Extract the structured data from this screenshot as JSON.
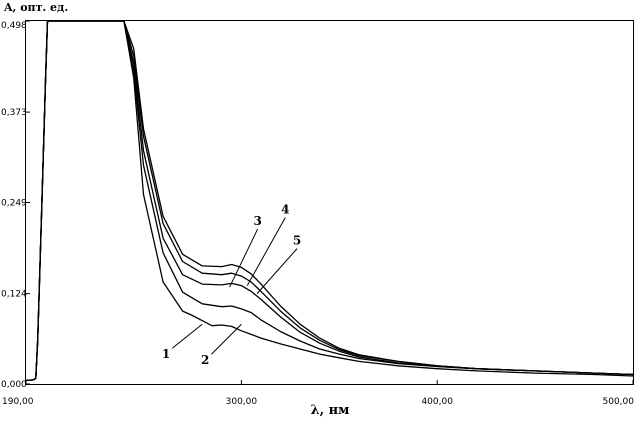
{
  "chart_data": {
    "type": "line",
    "ylabel": "A, опт. ед.",
    "xlabel": "λ,  нм",
    "xlim": [
      190,
      500
    ],
    "ylim": [
      0,
      0.498
    ],
    "grid": false,
    "x_ticks": [
      {
        "value": 190,
        "label": "190,00"
      },
      {
        "value": 300,
        "label": "300,00"
      },
      {
        "value": 400,
        "label": "400,00"
      },
      {
        "value": 500,
        "label": "500,00"
      }
    ],
    "y_ticks": [
      {
        "value": 0.0,
        "label": "0,000"
      },
      {
        "value": 0.124,
        "label": "0,124"
      },
      {
        "value": 0.249,
        "label": "0,249"
      },
      {
        "value": 0.373,
        "label": "0,373"
      },
      {
        "value": 0.498,
        "label": "0,498"
      }
    ],
    "series": [
      {
        "name": "1",
        "label_anchor": [
          280,
          0.082
        ],
        "x": [
          190,
          192,
          194,
          195,
          196,
          198,
          200,
          201,
          202,
          203,
          204,
          205,
          210,
          220,
          230,
          240,
          245,
          250,
          260,
          270,
          275,
          280,
          285,
          290,
          295,
          300,
          305,
          310,
          320,
          330,
          340,
          350,
          360,
          380,
          400,
          420,
          450,
          480,
          500
        ],
        "y": [
          0.005,
          0.005,
          0.006,
          0.008,
          0.06,
          0.24,
          0.42,
          0.498,
          0.498,
          0.498,
          0.498,
          0.498,
          0.498,
          0.498,
          0.498,
          0.498,
          0.42,
          0.26,
          0.14,
          0.1,
          0.094,
          0.087,
          0.08,
          0.081,
          0.079,
          0.073,
          0.068,
          0.063,
          0.055,
          0.048,
          0.041,
          0.036,
          0.031,
          0.025,
          0.021,
          0.018,
          0.015,
          0.013,
          0.011
        ]
      },
      {
        "name": "2",
        "label_anchor": [
          300,
          0.082
        ],
        "x": [
          190,
          192,
          194,
          195,
          196,
          198,
          200,
          201,
          202,
          203,
          204,
          205,
          210,
          220,
          230,
          240,
          245,
          250,
          260,
          270,
          280,
          290,
          295,
          300,
          305,
          310,
          320,
          330,
          340,
          350,
          360,
          380,
          400,
          420,
          450,
          480,
          500
        ],
        "y": [
          0.005,
          0.005,
          0.006,
          0.008,
          0.06,
          0.24,
          0.42,
          0.498,
          0.498,
          0.498,
          0.498,
          0.498,
          0.498,
          0.498,
          0.498,
          0.498,
          0.43,
          0.3,
          0.18,
          0.126,
          0.11,
          0.106,
          0.107,
          0.103,
          0.098,
          0.088,
          0.072,
          0.059,
          0.048,
          0.041,
          0.035,
          0.028,
          0.024,
          0.021,
          0.018,
          0.015,
          0.013
        ]
      },
      {
        "name": "3",
        "label_anchor": [
          294,
          0.133
        ],
        "x": [
          190,
          192,
          194,
          195,
          196,
          198,
          200,
          201,
          202,
          203,
          204,
          205,
          210,
          220,
          230,
          240,
          245,
          250,
          260,
          270,
          280,
          290,
          295,
          300,
          305,
          310,
          320,
          330,
          340,
          350,
          360,
          380,
          400,
          420,
          450,
          480,
          500
        ],
        "y": [
          0.005,
          0.005,
          0.006,
          0.008,
          0.06,
          0.24,
          0.42,
          0.498,
          0.498,
          0.498,
          0.498,
          0.498,
          0.498,
          0.498,
          0.498,
          0.498,
          0.44,
          0.32,
          0.2,
          0.15,
          0.137,
          0.136,
          0.138,
          0.135,
          0.127,
          0.116,
          0.092,
          0.071,
          0.056,
          0.045,
          0.037,
          0.029,
          0.024,
          0.021,
          0.018,
          0.015,
          0.013
        ]
      },
      {
        "name": "4",
        "label_anchor": [
          303,
          0.135
        ],
        "x": [
          190,
          192,
          194,
          195,
          196,
          198,
          200,
          201,
          202,
          203,
          204,
          205,
          210,
          220,
          230,
          240,
          245,
          250,
          260,
          270,
          280,
          290,
          295,
          300,
          305,
          310,
          320,
          330,
          340,
          350,
          360,
          380,
          400,
          420,
          450,
          480,
          500
        ],
        "y": [
          0.005,
          0.005,
          0.006,
          0.008,
          0.06,
          0.24,
          0.42,
          0.498,
          0.498,
          0.498,
          0.498,
          0.498,
          0.498,
          0.498,
          0.498,
          0.498,
          0.45,
          0.34,
          0.22,
          0.168,
          0.152,
          0.15,
          0.152,
          0.148,
          0.14,
          0.127,
          0.1,
          0.077,
          0.06,
          0.047,
          0.039,
          0.031,
          0.025,
          0.021,
          0.018,
          0.015,
          0.013
        ]
      },
      {
        "name": "5",
        "label_anchor": [
          308,
          0.124
        ],
        "x": [
          190,
          192,
          194,
          195,
          196,
          198,
          200,
          201,
          202,
          203,
          204,
          205,
          210,
          220,
          230,
          240,
          245,
          250,
          260,
          270,
          280,
          290,
          295,
          300,
          305,
          310,
          320,
          330,
          340,
          350,
          360,
          380,
          400,
          420,
          450,
          480,
          500
        ],
        "y": [
          0.005,
          0.005,
          0.006,
          0.008,
          0.06,
          0.24,
          0.42,
          0.498,
          0.498,
          0.498,
          0.498,
          0.498,
          0.498,
          0.498,
          0.498,
          0.498,
          0.46,
          0.35,
          0.23,
          0.178,
          0.162,
          0.161,
          0.164,
          0.16,
          0.151,
          0.137,
          0.107,
          0.082,
          0.063,
          0.049,
          0.04,
          0.031,
          0.025,
          0.021,
          0.018,
          0.015,
          0.013
        ]
      }
    ]
  }
}
